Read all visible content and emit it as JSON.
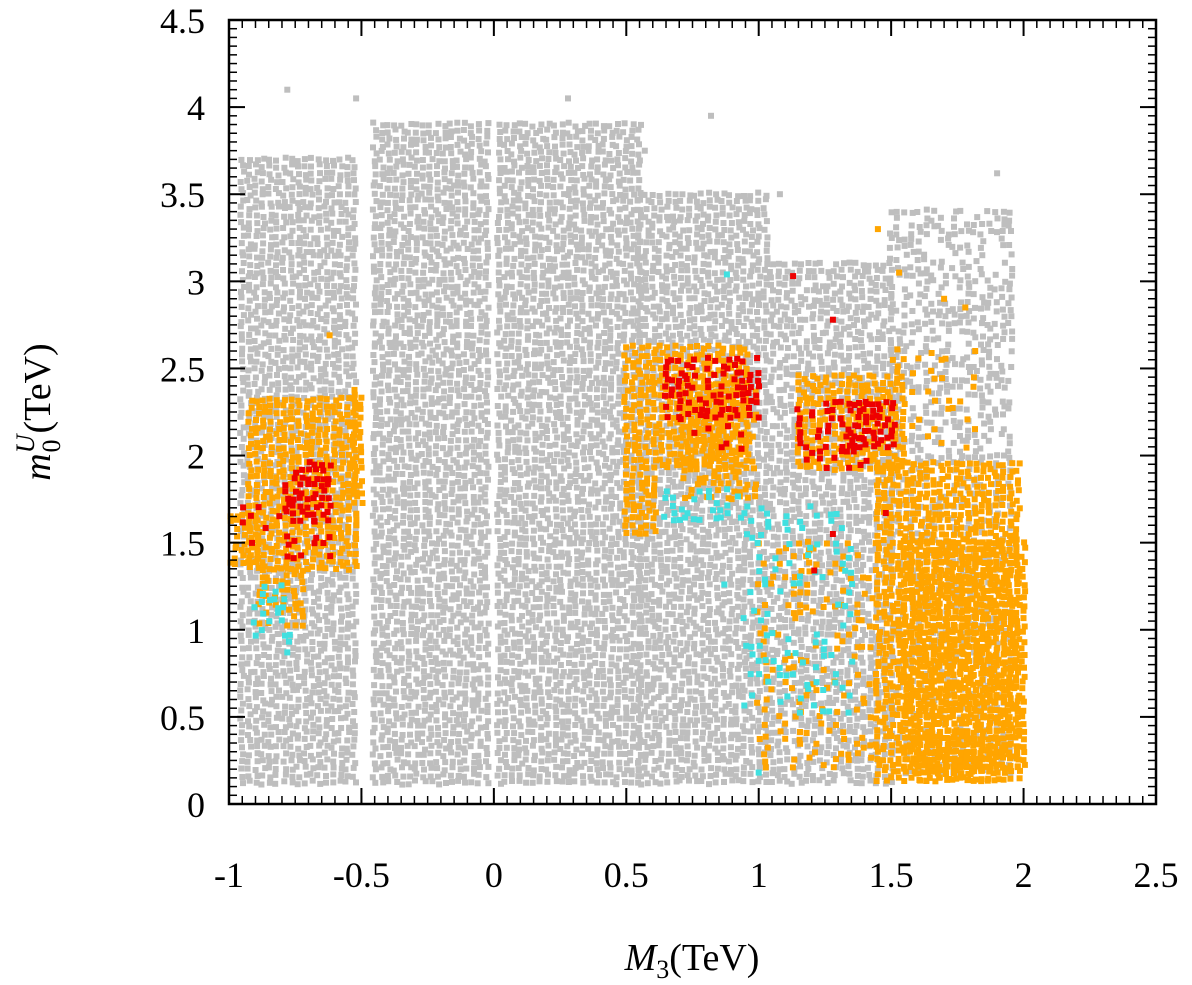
{
  "chart_data": {
    "type": "scatter",
    "title": "",
    "xlabel": {
      "symbol": "M",
      "sub": "3",
      "unit": "(TeV)"
    },
    "ylabel": {
      "symbol": "m",
      "sub": "0",
      "sup": "U",
      "unit": "(TeV)"
    },
    "xlim": [
      -1,
      2.5
    ],
    "ylim": [
      0,
      4.5
    ],
    "x_ticks": [
      -1,
      -0.5,
      0,
      0.5,
      1,
      1.5,
      2,
      2.5
    ],
    "x_tick_labels": [
      "-1",
      "-0.5",
      "0",
      "0.5",
      "1",
      "1.5",
      "2",
      "2.5"
    ],
    "y_ticks": [
      0,
      0.5,
      1,
      1.5,
      2,
      2.5,
      3,
      3.5,
      4,
      4.5
    ],
    "y_tick_labels": [
      "0",
      "0.5",
      "1",
      "1.5",
      "2",
      "2.5",
      "3",
      "3.5",
      "4",
      "4.5"
    ],
    "grid": false,
    "legend": "none",
    "series": [
      {
        "color": "#bebebe",
        "regions": [
          {
            "x": [
              -0.95,
              -0.52
            ],
            "y": [
              0.1,
              3.7
            ],
            "density": 1.0
          },
          {
            "x": [
              -0.45,
              -0.02
            ],
            "y": [
              0.12,
              3.9
            ],
            "density": 1.0
          },
          {
            "x": [
              0.02,
              0.55
            ],
            "y": [
              0.1,
              3.9
            ],
            "density": 1.0
          },
          {
            "x": [
              0.55,
              1.05
            ],
            "y": [
              0.1,
              3.5
            ],
            "density": 1.0
          },
          {
            "x": [
              1.05,
              1.5
            ],
            "y": [
              0.1,
              3.1
            ],
            "density": 0.9
          },
          {
            "x": [
              1.5,
              1.95
            ],
            "y": [
              0.15,
              3.4
            ],
            "density": 0.6
          }
        ],
        "points": [
          [
            -0.78,
            4.1
          ],
          [
            -0.52,
            4.05
          ],
          [
            0.28,
            4.05
          ],
          [
            0.82,
            3.95
          ],
          [
            1.08,
            3.5
          ],
          [
            1.9,
            3.62
          ],
          [
            0.57,
            3.75
          ],
          [
            -0.15,
            3.55
          ]
        ]
      },
      {
        "color": "#ffa500",
        "regions": [
          {
            "x": [
              -0.92,
              -0.52
            ],
            "y": [
              1.35,
              2.32
            ],
            "density": 1.0
          },
          {
            "x": [
              -1.0,
              -0.88
            ],
            "y": [
              1.35,
              1.66
            ],
            "density": 1.0
          },
          {
            "x": [
              -0.88,
              -0.72
            ],
            "y": [
              1.0,
              1.35
            ],
            "density": 0.8
          },
          {
            "x": [
              -0.53,
              -0.48
            ],
            "y": [
              1.7,
              2.38
            ],
            "density": 0.9
          },
          {
            "x": [
              0.5,
              0.62
            ],
            "y": [
              1.53,
              1.88
            ],
            "density": 1.0
          },
          {
            "x": [
              0.5,
              0.95
            ],
            "y": [
              1.9,
              2.62
            ],
            "density": 1.0
          },
          {
            "x": [
              0.72,
              1.0
            ],
            "y": [
              1.75,
              2.4
            ],
            "density": 0.8
          },
          {
            "x": [
              1.15,
              1.55
            ],
            "y": [
              1.9,
              2.45
            ],
            "density": 0.9
          },
          {
            "x": [
              1.45,
              1.98
            ],
            "y": [
              0.12,
              1.95
            ],
            "density": 1.0
          },
          {
            "x": [
              1.55,
              2.02
            ],
            "y": [
              0.2,
              1.5
            ],
            "density": 1.0
          },
          {
            "x": [
              1.6,
              1.9
            ],
            "y": [
              0.1,
              0.3
            ],
            "density": 1.0
          },
          {
            "x": [
              1.0,
              1.45
            ],
            "y": [
              0.2,
              1.5
            ],
            "density": 0.25
          },
          {
            "x": [
              1.5,
              1.85
            ],
            "y": [
              2.0,
              2.6
            ],
            "density": 0.15
          }
        ],
        "points": [
          [
            -0.62,
            2.69
          ],
          [
            1.45,
            3.3
          ],
          [
            1.53,
            3.05
          ],
          [
            1.7,
            2.9
          ],
          [
            1.78,
            2.85
          ],
          [
            1.03,
            0.6
          ],
          [
            1.12,
            0.85
          ]
        ]
      },
      {
        "color": "#40e0e0",
        "regions": [
          {
            "x": [
              -0.9,
              -0.75
            ],
            "y": [
              0.9,
              1.25
            ],
            "density": 0.35
          },
          {
            "x": [
              0.65,
              0.95
            ],
            "y": [
              1.6,
              1.8
            ],
            "density": 0.3
          },
          {
            "x": [
              0.95,
              1.35
            ],
            "y": [
              0.5,
              1.7
            ],
            "density": 0.2
          }
        ],
        "points": [
          [
            0.87,
            1.26
          ],
          [
            1.0,
            0.18
          ],
          [
            0.88,
            3.04
          ],
          [
            -0.78,
            0.87
          ]
        ]
      },
      {
        "color": "#ee0000",
        "regions": [
          {
            "x": [
              -0.78,
              -0.62
            ],
            "y": [
              1.62,
              1.95
            ],
            "density": 0.8
          },
          {
            "x": [
              -0.94,
              -0.62
            ],
            "y": [
              1.38,
              1.7
            ],
            "density": 0.2
          },
          {
            "x": [
              0.65,
              1.0
            ],
            "y": [
              2.2,
              2.55
            ],
            "density": 0.7
          },
          {
            "x": [
              0.7,
              0.95
            ],
            "y": [
              1.98,
              2.2
            ],
            "density": 0.3
          },
          {
            "x": [
              1.35,
              1.52
            ],
            "y": [
              2.05,
              2.3
            ],
            "density": 0.9
          },
          {
            "x": [
              1.15,
              1.45
            ],
            "y": [
              1.9,
              2.3
            ],
            "density": 0.4
          }
        ],
        "points": [
          [
            1.13,
            3.03
          ],
          [
            1.28,
            2.78
          ],
          [
            1.48,
            1.67
          ],
          [
            1.21,
            1.34
          ],
          [
            1.28,
            1.55
          ]
        ]
      }
    ]
  }
}
